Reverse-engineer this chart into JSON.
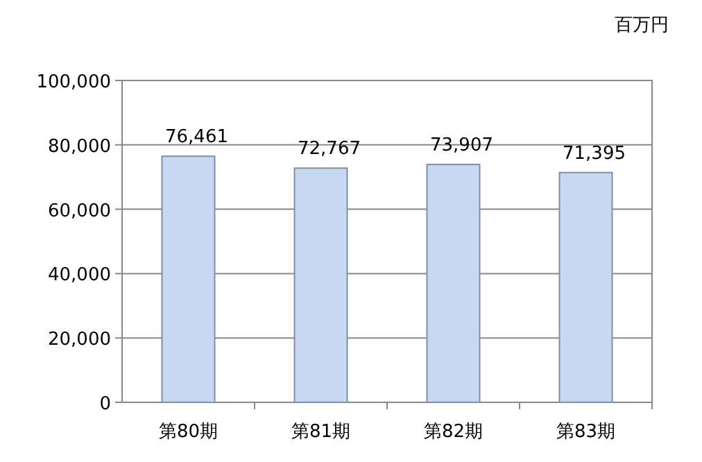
{
  "chart_data": {
    "type": "bar",
    "ylabel": "百万円",
    "categories": [
      "第80期",
      "第81期",
      "第82期",
      "第83期"
    ],
    "values": [
      76461,
      72767,
      73907,
      71395
    ],
    "value_labels": [
      "76,461",
      "72,767",
      "73,907",
      "71,395"
    ],
    "color": "#c6d9f1",
    "ylim": [
      0,
      100000
    ],
    "yticks": [
      0,
      {
        "value": 20000,
        "label": "20,000"
      },
      {
        "value": 40000,
        "label": "40,000"
      },
      {
        "value": 60000,
        "label": "60,000"
      },
      {
        "value": 80000,
        "label": "80,000"
      },
      {
        "value": 100000,
        "label": "100,000"
      }
    ],
    "grid": "y"
  }
}
